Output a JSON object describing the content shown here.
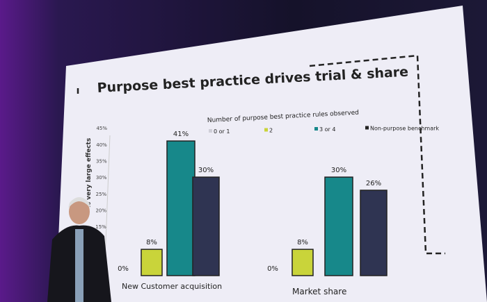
{
  "slide": {
    "title": "Purpose best practice drives trial & share"
  },
  "chart_data": {
    "type": "bar",
    "legend_title": "Number of purpose best practice rules observed",
    "legend_placement": "top",
    "ylabel": "% very large effects",
    "yticks": [
      "15%",
      "20%",
      "25%",
      "30%",
      "35%",
      "40%",
      "45%"
    ],
    "ylim": [
      0,
      45
    ],
    "categories": [
      "New Customer acquisition",
      "Market share"
    ],
    "series": [
      {
        "name": "0 or 1",
        "values": [
          0,
          0
        ],
        "labels": [
          "0%",
          "0%"
        ],
        "color": "#dcdce6"
      },
      {
        "name": "2",
        "values": [
          8,
          8
        ],
        "labels": [
          "8%",
          "8%"
        ],
        "color": "#c9d43a"
      },
      {
        "name": "3 or 4",
        "values": [
          41,
          30
        ],
        "labels": [
          "41%",
          "30%"
        ],
        "color": "#17888a"
      },
      {
        "name": "Non-purpose benchmark",
        "values": [
          30,
          26
        ],
        "labels": [
          "30%",
          "26%"
        ],
        "color": "#2f3452"
      }
    ]
  }
}
